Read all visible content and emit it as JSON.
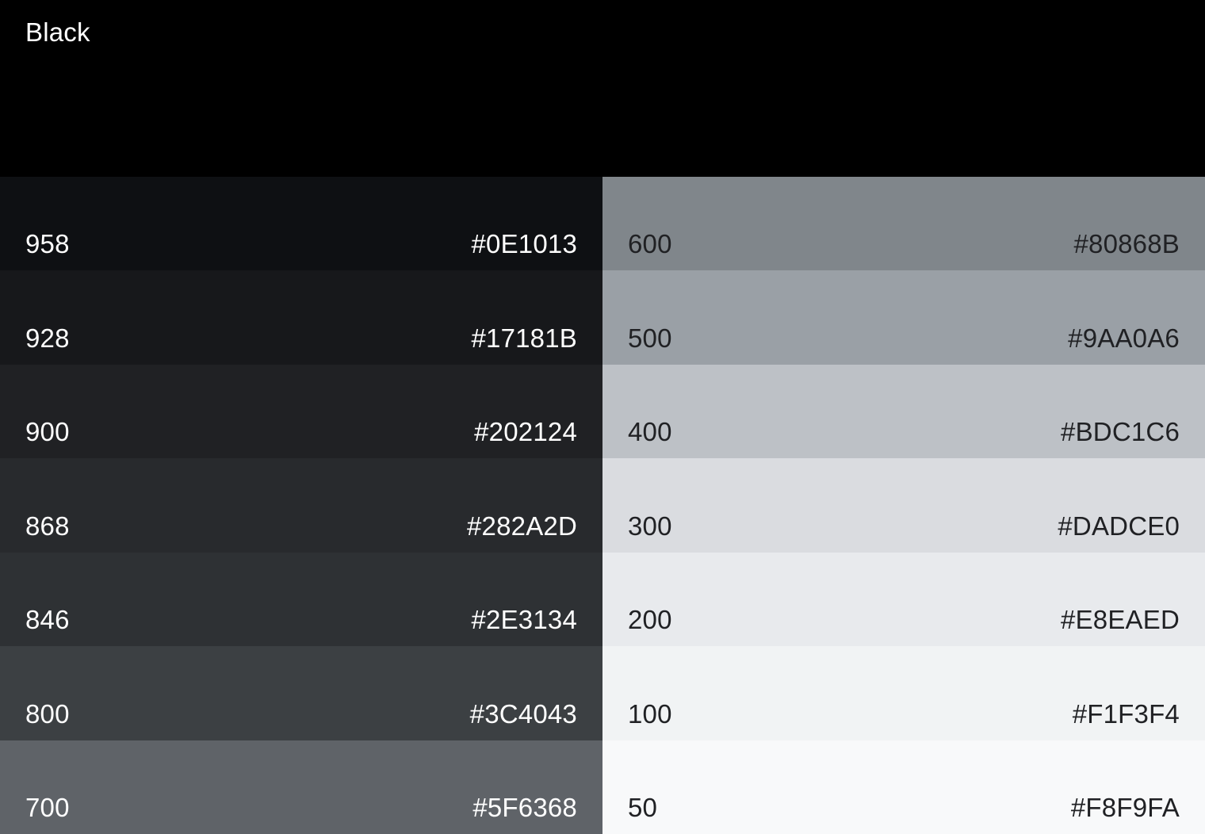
{
  "header": {
    "title": "Black",
    "background": "#000000",
    "text_color": "#FFFFFF"
  },
  "palette": {
    "dark_column": {
      "text_color": "#FFFFFF",
      "swatches": [
        {
          "tone": "958",
          "hex": "#0E1013"
        },
        {
          "tone": "928",
          "hex": "#17181B"
        },
        {
          "tone": "900",
          "hex": "#202124"
        },
        {
          "tone": "868",
          "hex": "#282A2D"
        },
        {
          "tone": "846",
          "hex": "#2E3134"
        },
        {
          "tone": "800",
          "hex": "#3C4043"
        },
        {
          "tone": "700",
          "hex": "#5F6368"
        }
      ]
    },
    "light_column": {
      "text_color": "#202124",
      "swatches": [
        {
          "tone": "600",
          "hex": "#80868B"
        },
        {
          "tone": "500",
          "hex": "#9AA0A6"
        },
        {
          "tone": "400",
          "hex": "#BDC1C6"
        },
        {
          "tone": "300",
          "hex": "#DADCE0"
        },
        {
          "tone": "200",
          "hex": "#E8EAED"
        },
        {
          "tone": "100",
          "hex": "#F1F3F4"
        },
        {
          "tone": "50",
          "hex": "#F8F9FA"
        }
      ]
    }
  }
}
